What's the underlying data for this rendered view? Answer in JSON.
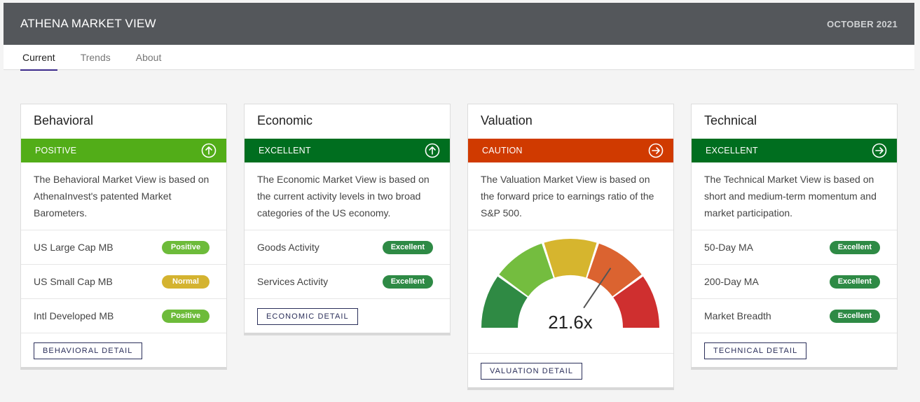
{
  "header": {
    "title": "ATHENA MARKET VIEW",
    "date": "OCTOBER 2021"
  },
  "tabs": [
    {
      "label": "Current",
      "active": true
    },
    {
      "label": "Trends",
      "active": false
    },
    {
      "label": "About",
      "active": false
    }
  ],
  "cards": {
    "behavioral": {
      "title": "Behavioral",
      "status": "POSITIVE",
      "status_color": "#52ad18",
      "status_icon": "arrow-up-circle-icon",
      "description": "The Behavioral Market View is based on AthenaInvest's patented Market Barometers.",
      "rows": [
        {
          "label": "US Large Cap MB",
          "badge": "Positive",
          "badge_color": "#6dbb3a"
        },
        {
          "label": "US Small Cap MB",
          "badge": "Normal",
          "badge_color": "#d4b330"
        },
        {
          "label": "Intl Developed MB",
          "badge": "Positive",
          "badge_color": "#6dbb3a"
        }
      ],
      "detail_label": "BEHAVIORAL DETAIL"
    },
    "economic": {
      "title": "Economic",
      "status": "EXCELLENT",
      "status_color": "#006e1f",
      "status_icon": "arrow-up-circle-icon",
      "description": "The Economic Market View is based on the current activity levels in two broad categories of the US economy.",
      "rows": [
        {
          "label": "Goods Activity",
          "badge": "Excellent",
          "badge_color": "#2e8a45"
        },
        {
          "label": "Services Activity",
          "badge": "Excellent",
          "badge_color": "#2e8a45"
        }
      ],
      "detail_label": "ECONOMIC DETAIL"
    },
    "valuation": {
      "title": "Valuation",
      "status": "CAUTION",
      "status_color": "#d03a00",
      "status_icon": "arrow-right-circle-icon",
      "description": "The Valuation Market View is based on the forward price to earnings ratio of the S&P 500.",
      "gauge": {
        "value": "21.6x",
        "segment_colors": [
          "#2f8a44",
          "#74bd3f",
          "#d6b52e",
          "#db6330",
          "#cf2f2f"
        ],
        "needle_segment": 3
      },
      "detail_label": "VALUATION DETAIL"
    },
    "technical": {
      "title": "Technical",
      "status": "EXCELLENT",
      "status_color": "#006e1f",
      "status_icon": "arrow-right-circle-icon",
      "description": "The Technical Market View is based on short and medium-term momentum and market participation.",
      "rows": [
        {
          "label": "50-Day MA",
          "badge": "Excellent",
          "badge_color": "#2e8a45"
        },
        {
          "label": "200-Day MA",
          "badge": "Excellent",
          "badge_color": "#2e8a45"
        },
        {
          "label": "Market Breadth",
          "badge": "Excellent",
          "badge_color": "#2e8a45"
        }
      ],
      "detail_label": "TECHNICAL DETAIL"
    }
  }
}
